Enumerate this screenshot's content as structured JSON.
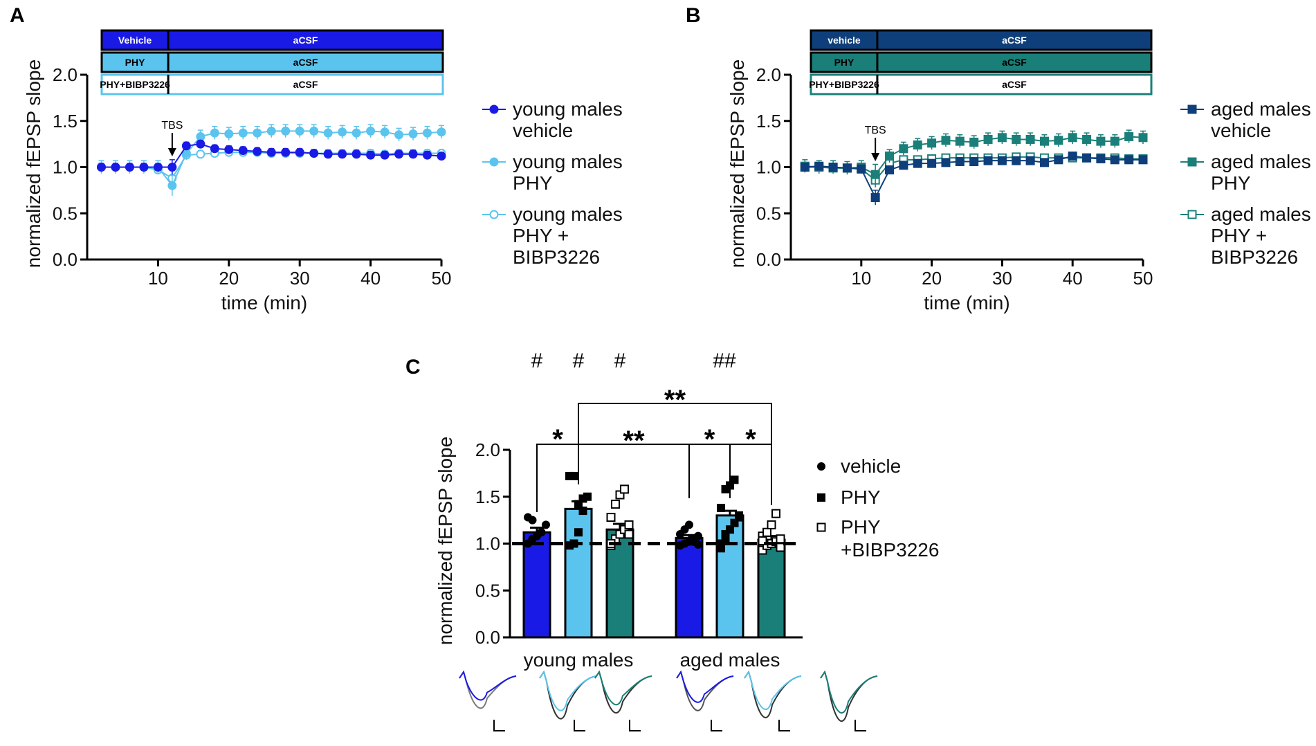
{
  "chart_data": [
    {
      "panel": "A",
      "type": "line",
      "xlabel": "time (min)",
      "ylabel": "normalized fEPSP slope",
      "xlim": [
        0,
        50
      ],
      "ylim": [
        0,
        2.0
      ],
      "xticks": [
        10,
        20,
        30,
        40,
        50
      ],
      "yticks": [
        0.0,
        0.5,
        1.0,
        1.5,
        2.0
      ],
      "ytick_labels": [
        "0.0",
        "0.5",
        "1.0",
        "1.5",
        "2.0"
      ],
      "annotation": "TBS",
      "annotation_x": 12,
      "protocol_bars": [
        {
          "left": "Vehicle",
          "right": "aCSF",
          "color": "#1a1ae6",
          "style": "filled",
          "text_color": "#ffffff"
        },
        {
          "left": "PHY",
          "right": "aCSF",
          "color": "#5bc4ee",
          "style": "filled",
          "text_color": "#000000"
        },
        {
          "left": "PHY+BIBP3226",
          "right": "aCSF",
          "color": "#5bc4ee",
          "style": "outline",
          "text_color": "#000000"
        }
      ],
      "x": [
        2,
        4,
        6,
        8,
        10,
        12,
        14,
        16,
        18,
        20,
        22,
        24,
        26,
        28,
        30,
        32,
        34,
        36,
        38,
        40,
        42,
        44,
        46,
        48,
        50
      ],
      "series": [
        {
          "name": "young males vehicle",
          "legend": [
            "young males",
            "vehicle"
          ],
          "marker": "circle",
          "filled": true,
          "color": "#1a1ae6",
          "values": [
            1.0,
            1.0,
            1.0,
            1.0,
            1.0,
            1.0,
            1.23,
            1.25,
            1.2,
            1.19,
            1.18,
            1.17,
            1.16,
            1.16,
            1.16,
            1.15,
            1.14,
            1.14,
            1.14,
            1.13,
            1.13,
            1.14,
            1.14,
            1.13,
            1.12
          ]
        },
        {
          "name": "young males PHY",
          "legend": [
            "young males",
            "PHY"
          ],
          "marker": "circle",
          "filled": true,
          "color": "#5bc4ee",
          "values": [
            1.0,
            1.0,
            1.0,
            1.0,
            1.0,
            0.8,
            1.15,
            1.33,
            1.37,
            1.36,
            1.37,
            1.37,
            1.39,
            1.39,
            1.39,
            1.39,
            1.37,
            1.38,
            1.37,
            1.39,
            1.38,
            1.35,
            1.36,
            1.37,
            1.38
          ]
        },
        {
          "name": "young males PHY + BIBP3226",
          "legend": [
            "young males",
            "PHY +",
            "BIBP3226"
          ],
          "marker": "circle",
          "filled": false,
          "color": "#5bc4ee",
          "values": [
            1.0,
            1.0,
            1.0,
            1.0,
            0.97,
            0.88,
            1.13,
            1.14,
            1.15,
            1.16,
            1.16,
            1.16,
            1.15,
            1.15,
            1.15,
            1.15,
            1.15,
            1.15,
            1.15,
            1.15,
            1.14,
            1.15,
            1.15,
            1.15,
            1.15
          ]
        }
      ]
    },
    {
      "panel": "B",
      "type": "line",
      "xlabel": "time (min)",
      "ylabel": "normalized fEPSP slope",
      "xlim": [
        0,
        50
      ],
      "ylim": [
        0,
        2.0
      ],
      "xticks": [
        10,
        20,
        30,
        40,
        50
      ],
      "yticks": [
        0.0,
        0.5,
        1.0,
        1.5,
        2.0
      ],
      "ytick_labels": [
        "0.0",
        "0.5",
        "1.0",
        "1.5",
        "2.0"
      ],
      "annotation": "TBS",
      "annotation_x": 12,
      "protocol_bars": [
        {
          "left": "vehicle",
          "right": "aCSF",
          "color": "#0e3f7a",
          "style": "filled",
          "text_color": "#ffffff"
        },
        {
          "left": "PHY",
          "right": "aCSF",
          "color": "#1a7f78",
          "style": "filled",
          "text_color": "#000000"
        },
        {
          "left": "PHY+BIBP3226",
          "right": "aCSF",
          "color": "#1a7f78",
          "style": "outline",
          "text_color": "#000000"
        }
      ],
      "x": [
        2,
        4,
        6,
        8,
        10,
        12,
        14,
        16,
        18,
        20,
        22,
        24,
        26,
        28,
        30,
        32,
        34,
        36,
        38,
        40,
        42,
        44,
        46,
        48,
        50
      ],
      "series": [
        {
          "name": "aged males vehicle",
          "legend": [
            "aged males",
            "vehicle"
          ],
          "marker": "square",
          "filled": true,
          "color": "#0e3f7a",
          "values": [
            1.0,
            1.01,
            1.0,
            0.99,
            0.98,
            0.67,
            0.97,
            1.02,
            1.04,
            1.04,
            1.05,
            1.06,
            1.06,
            1.07,
            1.07,
            1.07,
            1.07,
            1.05,
            1.08,
            1.12,
            1.1,
            1.09,
            1.08,
            1.08,
            1.08
          ]
        },
        {
          "name": "aged males PHY",
          "legend": [
            "aged males",
            "PHY"
          ],
          "marker": "square",
          "filled": true,
          "color": "#1a7f78",
          "values": [
            1.01,
            1.0,
            1.0,
            0.99,
            1.0,
            0.92,
            1.12,
            1.2,
            1.24,
            1.26,
            1.29,
            1.28,
            1.27,
            1.3,
            1.32,
            1.3,
            1.3,
            1.28,
            1.29,
            1.32,
            1.3,
            1.28,
            1.28,
            1.33,
            1.32
          ]
        },
        {
          "name": "aged males PHY + BIBP3226",
          "legend": [
            "aged males",
            "PHY +",
            "BIBP3226"
          ],
          "marker": "square",
          "filled": false,
          "color": "#1a7f78",
          "values": [
            1.0,
            1.0,
            0.99,
            0.99,
            0.98,
            0.86,
            1.04,
            1.08,
            1.08,
            1.09,
            1.1,
            1.1,
            1.1,
            1.1,
            1.1,
            1.11,
            1.11,
            1.1,
            1.1,
            1.1,
            1.1,
            1.1,
            1.1,
            1.09,
            1.09
          ]
        }
      ]
    },
    {
      "panel": "C",
      "type": "bar",
      "ylabel": "normalized fEPSP slope",
      "ylim": [
        0,
        2.0
      ],
      "yticks": [
        0.0,
        0.5,
        1.0,
        1.5,
        2.0
      ],
      "ytick_labels": [
        "0.0",
        "0.5",
        "1.0",
        "1.5",
        "2.0"
      ],
      "reference_line": 1.0,
      "groups": [
        "young males",
        "aged males"
      ],
      "legend": [
        {
          "label": [
            "vehicle"
          ],
          "marker": "circle"
        },
        {
          "label": [
            "PHY"
          ],
          "marker": "square"
        },
        {
          "label": [
            "PHY",
            "+BIBP3226"
          ],
          "marker": "open-square"
        }
      ],
      "bars": [
        {
          "group": "young males",
          "treatment": "vehicle",
          "value": 1.12,
          "sem": 0.05,
          "color": "#1a1ae6",
          "hash": "#",
          "points": [
            1.0,
            1.05,
            1.08,
            1.12,
            1.2,
            1.28,
            1.25
          ]
        },
        {
          "group": "young males",
          "treatment": "PHY",
          "value": 1.37,
          "sem": 0.08,
          "color": "#5bc4ee",
          "hash": "#",
          "points": [
            0.98,
            1.0,
            1.12,
            1.35,
            1.5,
            1.72,
            1.72,
            1.42,
            1.48
          ]
        },
        {
          "group": "young males",
          "treatment": "PHY+BIBP3226",
          "value": 1.15,
          "sem": 0.06,
          "color": "#1a7f78",
          "hash": "#",
          "points": [
            0.98,
            1.05,
            1.1,
            1.15,
            1.2,
            1.28,
            1.42,
            1.52,
            1.58,
            1.1,
            1.0
          ]
        },
        {
          "group": "aged males",
          "treatment": "vehicle",
          "value": 1.06,
          "sem": 0.03,
          "color": "#1a1ae6",
          "hash": "",
          "points": [
            0.98,
            1.0,
            1.02,
            1.05,
            1.08,
            1.1,
            1.15,
            1.2,
            1.02,
            0.99
          ]
        },
        {
          "group": "aged males",
          "treatment": "PHY",
          "value": 1.3,
          "sem": 0.05,
          "color": "#5bc4ee",
          "hash": "##",
          "points": [
            0.95,
            1.05,
            1.15,
            1.22,
            1.3,
            1.38,
            1.58,
            1.62,
            1.68,
            1.28,
            1.0,
            1.1
          ]
        },
        {
          "group": "aged males",
          "treatment": "PHY+BIBP3226",
          "value": 1.04,
          "sem": 0.04,
          "color": "#1a7f78",
          "hash": "",
          "points": [
            0.93,
            0.98,
            1.0,
            1.02,
            1.05,
            1.08,
            1.12,
            1.2,
            1.32,
            0.96,
            1.03
          ]
        }
      ],
      "significance": [
        {
          "from": 0,
          "to": 1,
          "label": "*"
        },
        {
          "from": 1,
          "to": 3,
          "label": "**"
        },
        {
          "from": 3,
          "to": 4,
          "label": "*"
        },
        {
          "from": 4,
          "to": 5,
          "label": "*"
        },
        {
          "from": 1,
          "to": 5,
          "label": "**"
        }
      ],
      "traces_shown": true
    }
  ]
}
